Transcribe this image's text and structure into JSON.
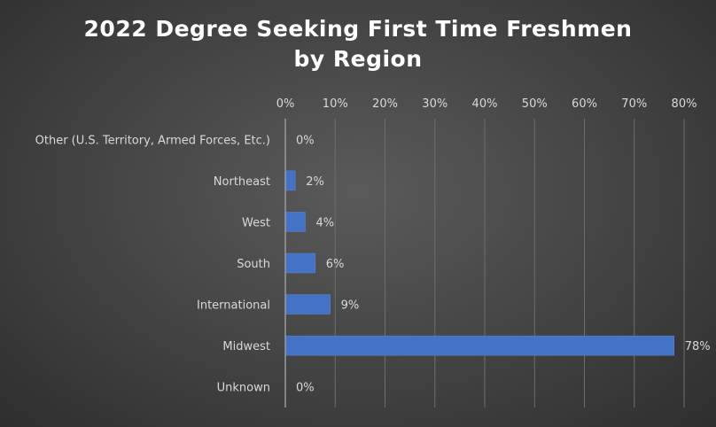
{
  "chart_data": {
    "type": "bar",
    "orientation": "horizontal",
    "title": [
      "2022 Degree Seeking First Time Freshmen",
      "by Region"
    ],
    "categories": [
      "Other (U.S. Territory, Armed Forces, Etc.)",
      "Northeast",
      "West",
      "South",
      "International",
      "Midwest",
      "Unknown"
    ],
    "values": [
      0,
      2,
      4,
      6,
      9,
      78,
      0
    ],
    "data_labels": [
      "0%",
      "2%",
      "4%",
      "6%",
      "9%",
      "78%",
      "0%"
    ],
    "x_ticks": [
      "0%",
      "10%",
      "20%",
      "30%",
      "40%",
      "50%",
      "60%",
      "70%",
      "80%"
    ],
    "xlim": [
      0,
      80
    ],
    "x_axis_position": "top",
    "grid": true,
    "bar_color": "#4472c4"
  }
}
